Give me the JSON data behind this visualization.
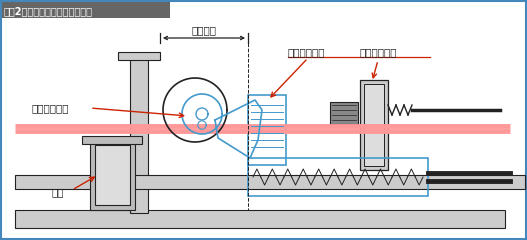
{
  "title": "『図2』送り動作の準備完了状態",
  "title2": "》図2》送り動作の準備完了状態",
  "bg_color": "#e8e8e8",
  "inner_bg": "#ffffff",
  "border_color": "#4488bb",
  "pink_color": "#ff9999",
  "dark_color": "#222222",
  "gray_color": "#aaaaaa",
  "dgray_color": "#888888",
  "blue_color": "#4499cc",
  "red_color": "#cc2200",
  "label_cam": "カムドライバ",
  "label_body": "本体",
  "label_feed": "送り長さ",
  "label_moving": "移動クランプ",
  "label_fixed": "固定クランプ",
  "title_text": "【図2】送り動作の準備完了状態"
}
